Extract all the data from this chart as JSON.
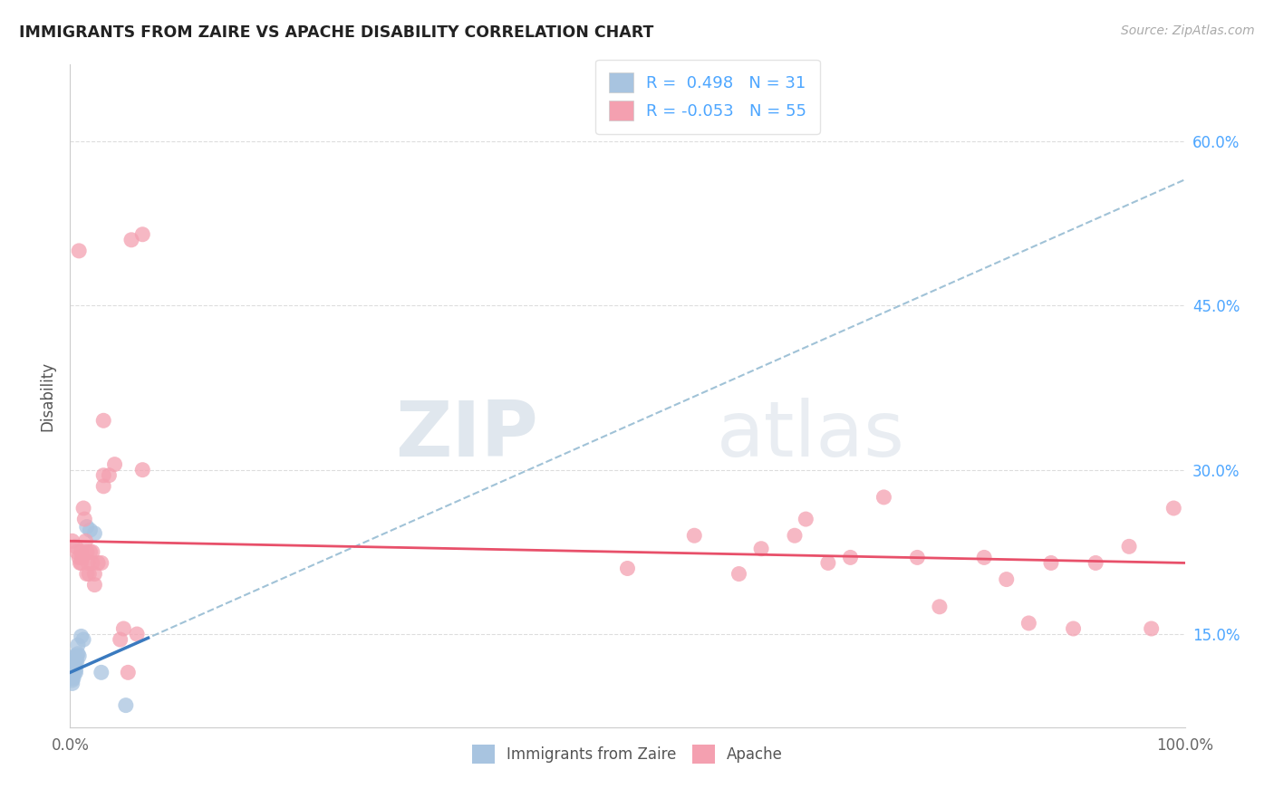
{
  "title": "IMMIGRANTS FROM ZAIRE VS APACHE DISABILITY CORRELATION CHART",
  "source": "Source: ZipAtlas.com",
  "ylabel": "Disability",
  "y_ticks": [
    0.15,
    0.3,
    0.45,
    0.6
  ],
  "y_tick_labels": [
    "15.0%",
    "30.0%",
    "45.0%",
    "60.0%"
  ],
  "x_range": [
    0.0,
    1.0
  ],
  "y_range": [
    0.065,
    0.67
  ],
  "legend_blue_r": "R =  0.498",
  "legend_blue_n": "N = 31",
  "legend_pink_r": "R = -0.053",
  "legend_pink_n": "N = 55",
  "blue_color": "#a8c4e0",
  "pink_color": "#f4a0b0",
  "blue_line_color": "#3a7abf",
  "pink_line_color": "#e8506a",
  "dashed_line_color": "#90b8d0",
  "background_color": "#ffffff",
  "watermark_zip": "ZIP",
  "watermark_atlas": "atlas",
  "blue_line_x": [
    0.0,
    1.0
  ],
  "blue_line_y": [
    0.115,
    0.565
  ],
  "pink_line_x": [
    0.0,
    1.0
  ],
  "pink_line_y": [
    0.235,
    0.215
  ],
  "blue_points_x": [
    0.001,
    0.001,
    0.001,
    0.002,
    0.002,
    0.002,
    0.002,
    0.002,
    0.003,
    0.003,
    0.003,
    0.003,
    0.004,
    0.004,
    0.004,
    0.004,
    0.005,
    0.005,
    0.005,
    0.006,
    0.006,
    0.007,
    0.007,
    0.008,
    0.01,
    0.012,
    0.015,
    0.018,
    0.022,
    0.028,
    0.05
  ],
  "blue_points_y": [
    0.12,
    0.115,
    0.11,
    0.125,
    0.118,
    0.112,
    0.108,
    0.105,
    0.122,
    0.118,
    0.115,
    0.11,
    0.13,
    0.125,
    0.12,
    0.115,
    0.125,
    0.118,
    0.115,
    0.13,
    0.125,
    0.14,
    0.132,
    0.13,
    0.148,
    0.145,
    0.248,
    0.245,
    0.242,
    0.115,
    0.085
  ],
  "pink_points_x": [
    0.002,
    0.005,
    0.006,
    0.008,
    0.009,
    0.01,
    0.01,
    0.011,
    0.012,
    0.013,
    0.014,
    0.015,
    0.015,
    0.016,
    0.017,
    0.018,
    0.02,
    0.02,
    0.022,
    0.022,
    0.025,
    0.028,
    0.03,
    0.03,
    0.035,
    0.04,
    0.008,
    0.03,
    0.045,
    0.048,
    0.052,
    0.06,
    0.065,
    0.055,
    0.065,
    0.5,
    0.56,
    0.6,
    0.62,
    0.65,
    0.66,
    0.68,
    0.7,
    0.73,
    0.76,
    0.78,
    0.82,
    0.84,
    0.86,
    0.88,
    0.9,
    0.92,
    0.95,
    0.97,
    0.99
  ],
  "pink_points_y": [
    0.235,
    0.23,
    0.225,
    0.22,
    0.215,
    0.225,
    0.215,
    0.22,
    0.265,
    0.255,
    0.235,
    0.225,
    0.205,
    0.215,
    0.205,
    0.225,
    0.215,
    0.225,
    0.205,
    0.195,
    0.215,
    0.215,
    0.285,
    0.295,
    0.295,
    0.305,
    0.5,
    0.345,
    0.145,
    0.155,
    0.115,
    0.15,
    0.3,
    0.51,
    0.515,
    0.21,
    0.24,
    0.205,
    0.228,
    0.24,
    0.255,
    0.215,
    0.22,
    0.275,
    0.22,
    0.175,
    0.22,
    0.2,
    0.16,
    0.215,
    0.155,
    0.215,
    0.23,
    0.155,
    0.265
  ]
}
